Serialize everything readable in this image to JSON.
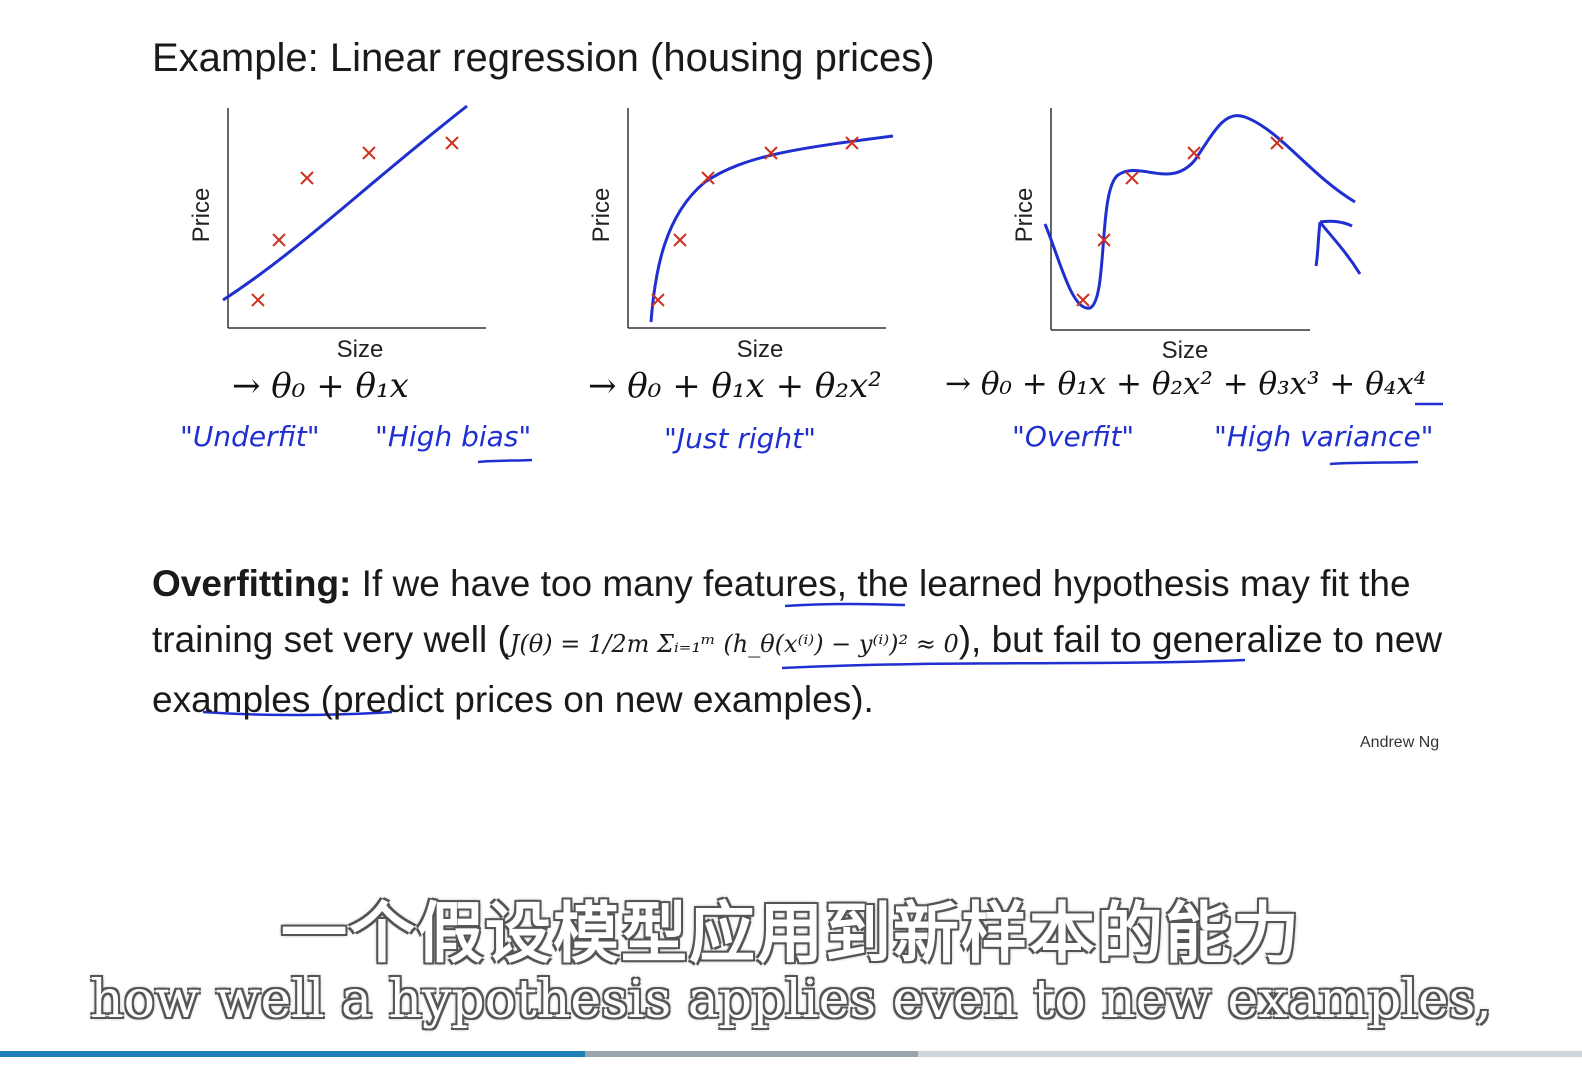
{
  "slide": {
    "title": "Example: Linear regression (housing prices)",
    "plots": [
      {
        "ylabel": "Price",
        "xlabel": "Size",
        "equation": "→ θ₀ + θ₁x",
        "notes": [
          "\"Underfit\"",
          "\"High bias\""
        ]
      },
      {
        "ylabel": "Price",
        "xlabel": "Size",
        "equation": "→ θ₀ + θ₁x + θ₂x²",
        "notes": [
          "\"Just right\""
        ]
      },
      {
        "ylabel": "Price",
        "xlabel": "Size",
        "equation": "→ θ₀ + θ₁x + θ₂x² + θ₃x³ + θ₄x⁴",
        "notes": [
          "\"Overfit\"",
          "\"High variance\""
        ]
      }
    ],
    "overfitting": {
      "heading": "Overfitting:",
      "text_1": " If we have too many features, the learned hypothesis may fit the training set very well (",
      "formula": "J(θ) = 1/2m Σᵢ₌₁ᵐ (h_θ(x⁽ⁱ⁾) − y⁽ⁱ⁾)² ≈ 0",
      "text_2": "), but fail to generalize to new examples (predict prices on new examples)."
    },
    "author": "Andrew Ng"
  },
  "subtitles": {
    "chinese": "一个假设模型应用到新样本的能力",
    "english": "how well a hypothesis applies even to new examples,"
  },
  "player": {
    "played_fraction": 0.37,
    "buffered_fraction": 0.58,
    "played_color": "#1f7fb8"
  },
  "colors": {
    "marker": "#d0311f",
    "ink": "#1f2fd0"
  }
}
